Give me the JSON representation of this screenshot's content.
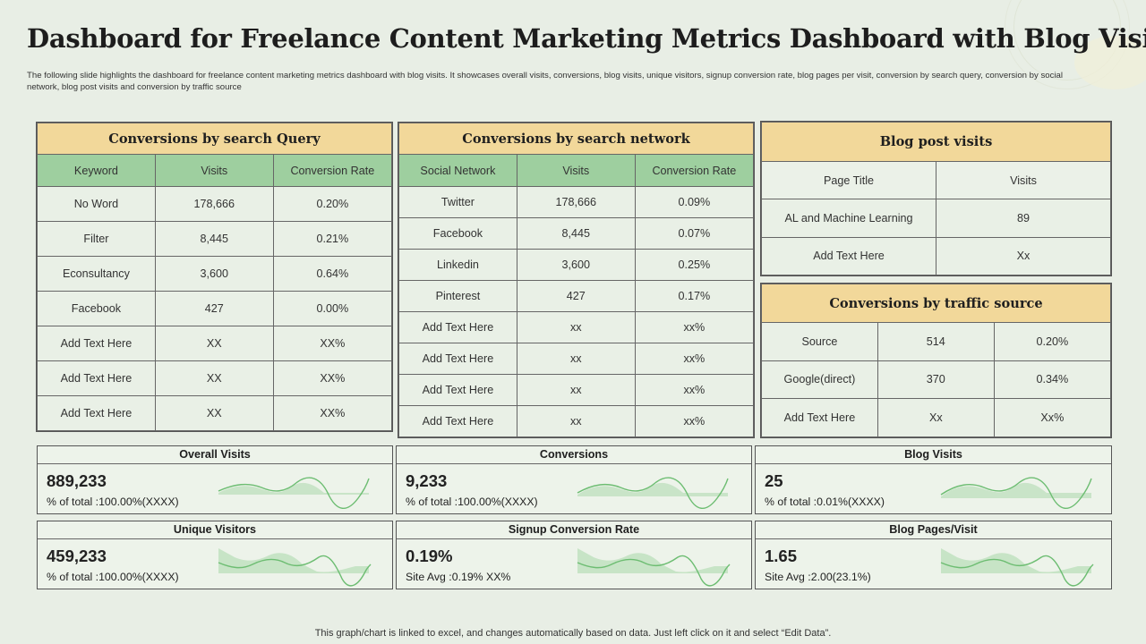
{
  "title": "Dashboard for Freelance Content Marketing Metrics Dashboard with Blog Visits",
  "description": "The following slide highlights the dashboard for freelance content marketing metrics dashboard with blog visits. It showcases overall visits, conversions, blog visits, unique visitors, signup conversion rate, blog pages per visit, conversion by search query, conversion by social network, blog post visits and conversion by traffic source",
  "search_query": {
    "title": "Conversions by search Query",
    "headers": [
      "Keyword",
      "Visits",
      "Conversion  Rate"
    ],
    "rows": [
      [
        "No Word",
        "178,666",
        "0.20%"
      ],
      [
        "Filter",
        "8,445",
        "0.21%"
      ],
      [
        "Econsultancy",
        "3,600",
        "0.64%"
      ],
      [
        "Facebook",
        "427",
        "0.00%"
      ],
      [
        "Add Text Here",
        "XX",
        "XX%"
      ],
      [
        "Add Text Here",
        "XX",
        "XX%"
      ],
      [
        "Add Text Here",
        "XX",
        "XX%"
      ]
    ]
  },
  "search_network": {
    "title": "Conversions by search network",
    "headers": [
      "Social Network",
      "Visits",
      "Conversion  Rate"
    ],
    "rows": [
      [
        "Twitter",
        "178,666",
        "0.09%"
      ],
      [
        "Facebook",
        "8,445",
        "0.07%"
      ],
      [
        "Linkedin",
        "3,600",
        "0.25%"
      ],
      [
        "Pinterest",
        "427",
        "0.17%"
      ],
      [
        "Add Text Here",
        "xx",
        "xx%"
      ],
      [
        "Add Text Here",
        "xx",
        "xx%"
      ],
      [
        "Add Text Here",
        "xx",
        "xx%"
      ],
      [
        "Add Text Here",
        "xx",
        "xx%"
      ]
    ]
  },
  "blog_post_visits": {
    "title": "Blog post visits",
    "headers": [
      "Page Title",
      "Visits"
    ],
    "rows": [
      [
        "AL and Machine Learning",
        "89"
      ],
      [
        "Add Text Here",
        "Xx"
      ]
    ]
  },
  "traffic_source": {
    "title": "Conversions by traffic source",
    "rows": [
      [
        "Source",
        "514",
        "0.20%"
      ],
      [
        "Google(direct)",
        "370",
        "0.34%"
      ],
      [
        "Add Text Here",
        "Xx",
        "Xx%"
      ]
    ]
  },
  "metrics": [
    {
      "title": "Overall Visits",
      "value": "889,233",
      "sub": "% of total :100.00%(XXXX)"
    },
    {
      "title": "Conversions",
      "value": "9,233",
      "sub": "% of total :100.00%(XXXX)"
    },
    {
      "title": "Blog Visits",
      "value": "25",
      "sub": "% of total :0.01%(XXXX)"
    },
    {
      "title": "Unique Visitors",
      "value": "459,233",
      "sub": "% of total :100.00%(XXXX)"
    },
    {
      "title": "Signup Conversion Rate",
      "value": "0.19%",
      "sub": "Site Avg  :0.19%  XX%"
    },
    {
      "title": "Blog Pages/Visit",
      "value": "1.65",
      "sub": "Site Avg  :2.00(23.1%)"
    }
  ],
  "footer": "This graph/chart is linked to excel,  and changes automatically based on data. Just left click on it and select “Edit Data”.",
  "colors": {
    "background": "#e8eee5",
    "title_band": "#f2d89a",
    "header_band": "#9ecf9f",
    "sparkline": "#6dbd72"
  }
}
